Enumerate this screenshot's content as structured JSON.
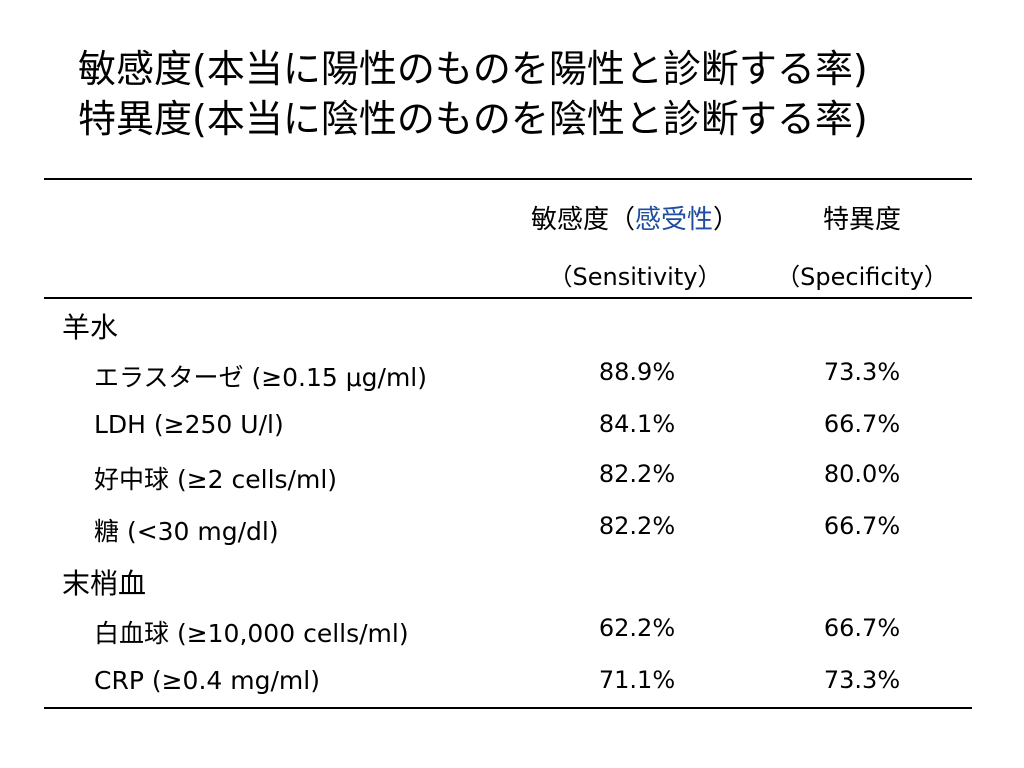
{
  "title": {
    "line1": "敏感度(本当に陽性のものを陽性と診断する率)",
    "line2": "特異度(本当に陰性のものを陰性と診断する率)"
  },
  "table": {
    "header": {
      "sensitivity_prefix": "敏感度（",
      "sensitivity_accent": "感受性",
      "sensitivity_suffix": "）",
      "specificity": "特異度",
      "sensitivity_en": "（Sensitivity）",
      "specificity_en": "（Specificity）"
    },
    "groups": [
      {
        "category": "羊水",
        "rows": [
          {
            "label": "エラスターゼ (≥0.15 μg/ml)",
            "sensitivity": "88.9%",
            "specificity": "73.3%"
          },
          {
            "label": "LDH (≥250 U/l)",
            "sensitivity": "84.1%",
            "specificity": "66.7%"
          },
          {
            "label": "好中球 (≥2 cells/ml)",
            "sensitivity": "82.2%",
            "specificity": "80.0%"
          },
          {
            "label": "糖 (<30 mg/dl)",
            "sensitivity": "82.2%",
            "specificity": "66.7%"
          }
        ]
      },
      {
        "category": "末梢血",
        "rows": [
          {
            "label": "白血球 (≥10,000 cells/ml)",
            "sensitivity": "62.2%",
            "specificity": "66.7%"
          },
          {
            "label": "CRP (≥0.4 mg/ml)",
            "sensitivity": "71.1%",
            "specificity": "73.3%"
          }
        ]
      }
    ]
  },
  "colors": {
    "accent": "#1f4e9e",
    "text": "#000000",
    "background": "#ffffff"
  }
}
